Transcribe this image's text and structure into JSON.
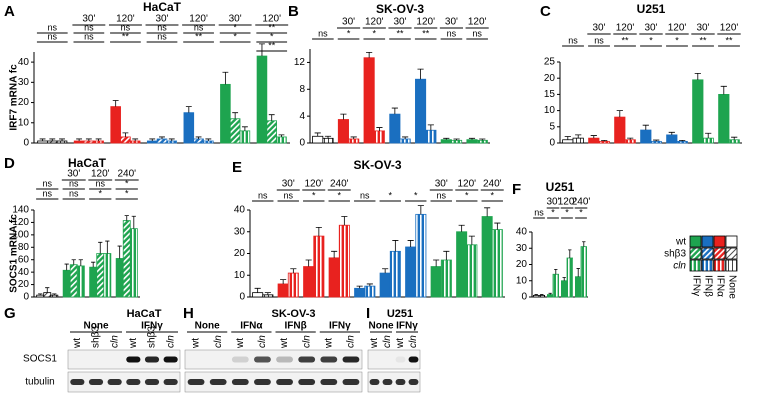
{
  "chart_data": [
    {
      "type": "bar",
      "letter": "A",
      "title": "HaCaT",
      "ylabel": "IRF7 mRNA fc",
      "ylim": [
        0,
        45
      ],
      "yticks": [
        0,
        10,
        20,
        30,
        40
      ],
      "categories": [
        null,
        "30'",
        "120'",
        "30'",
        "120'",
        "30'",
        "120'"
      ],
      "colors": [
        "#ffffff",
        "#e8221f",
        "#e8221f",
        "#1a6fc0",
        "#1a6fc0",
        "#1ea44f",
        "#1ea44f"
      ],
      "series": [
        {
          "pattern": "solid",
          "values": [
            1,
            1,
            18,
            1,
            15,
            29,
            43
          ],
          "errors": [
            1,
            1,
            3,
            1,
            3,
            6,
            6
          ]
        },
        {
          "pattern": "hatch",
          "values": [
            1,
            1,
            3,
            2,
            2,
            12,
            11
          ],
          "errors": [
            1,
            1,
            2,
            1,
            1,
            3,
            3
          ]
        },
        {
          "pattern": "stripe",
          "values": [
            1,
            1,
            1,
            1,
            1,
            6,
            3
          ],
          "errors": [
            1,
            1,
            1,
            1,
            1,
            2,
            1
          ]
        }
      ],
      "significance": [
        [
          "ns",
          "ns"
        ],
        [
          "ns",
          "ns"
        ],
        [
          "ns",
          "**"
        ],
        [
          "ns",
          "ns"
        ],
        [
          "ns",
          "**"
        ],
        [
          "*",
          "*"
        ],
        [
          "**",
          "*",
          "**"
        ]
      ]
    },
    {
      "type": "bar",
      "letter": "B",
      "title": "SK-OV-3",
      "ylim": [
        0,
        14
      ],
      "yticks": [
        0,
        4,
        8,
        12
      ],
      "categories": [
        null,
        "30'",
        "120'",
        "30'",
        "120'",
        "30'",
        "120'"
      ],
      "colors": [
        "#ffffff",
        "#e8221f",
        "#e8221f",
        "#1a6fc0",
        "#1a6fc0",
        "#1ea44f",
        "#1ea44f"
      ],
      "series": [
        {
          "pattern": "solid",
          "values": [
            1,
            3.5,
            12.7,
            4.3,
            9.5,
            0.5,
            0.5
          ],
          "errors": [
            0.5,
            0.8,
            0.8,
            0.9,
            1.5,
            0.2,
            0.2
          ]
        },
        {
          "pattern": "stripe",
          "values": [
            0.7,
            0.6,
            1.8,
            0.6,
            1.9,
            0.4,
            0.4
          ],
          "errors": [
            0.3,
            0.3,
            0.5,
            0.3,
            0.8,
            0.2,
            0.2
          ]
        }
      ],
      "significance": [
        [
          "ns"
        ],
        [
          "*"
        ],
        [
          "*"
        ],
        [
          "**"
        ],
        [
          "**"
        ],
        [
          "ns"
        ],
        [
          "ns"
        ]
      ]
    },
    {
      "type": "bar",
      "letter": "C",
      "title": "U251",
      "ylim": [
        0,
        25
      ],
      "yticks": [
        0,
        5,
        10,
        15,
        20,
        25
      ],
      "categories": [
        null,
        "30'",
        "120'",
        "30'",
        "120'",
        "30'",
        "120'"
      ],
      "colors": [
        "#ffffff",
        "#e8221f",
        "#e8221f",
        "#1a6fc0",
        "#1a6fc0",
        "#1ea44f",
        "#1ea44f"
      ],
      "series": [
        {
          "pattern": "solid",
          "values": [
            1,
            1.5,
            8,
            4,
            2.5,
            19.5,
            15
          ],
          "errors": [
            1,
            0.8,
            2,
            1.5,
            0.8,
            2,
            2.5
          ]
        },
        {
          "pattern": "stripe",
          "values": [
            1.5,
            0.5,
            1,
            0.5,
            0.5,
            1.5,
            1
          ],
          "errors": [
            1,
            0.3,
            0.5,
            0.4,
            0.3,
            1.5,
            0.8
          ]
        }
      ],
      "significance": [
        [
          "ns"
        ],
        [
          "ns"
        ],
        [
          "**"
        ],
        [
          "*"
        ],
        [
          "*"
        ],
        [
          "**"
        ],
        [
          "**"
        ]
      ]
    },
    {
      "type": "bar",
      "letter": "D",
      "title": "HaCaT",
      "ylabel": "SOCS1 mRNA fc",
      "ylim": [
        0,
        140
      ],
      "yticks": [
        0,
        20,
        40,
        60,
        80,
        100,
        120,
        140
      ],
      "categories": [
        null,
        "30'",
        "120'",
        "240'"
      ],
      "colors": [
        "#ffffff",
        "#1ea44f",
        "#1ea44f",
        "#1ea44f"
      ],
      "series": [
        {
          "pattern": "solid",
          "values": [
            3,
            43,
            48,
            62
          ],
          "errors": [
            2,
            10,
            8,
            20
          ]
        },
        {
          "pattern": "hatch",
          "values": [
            7,
            52,
            70,
            123
          ],
          "errors": [
            8,
            8,
            18,
            8
          ]
        },
        {
          "pattern": "stripe",
          "values": [
            3,
            50,
            70,
            110
          ],
          "errors": [
            2,
            10,
            20,
            20
          ]
        }
      ],
      "significance": [
        [
          "ns",
          "ns"
        ],
        [
          "ns",
          "ns"
        ],
        [
          "ns",
          "*"
        ],
        [
          "*",
          "*"
        ]
      ]
    },
    {
      "type": "bar",
      "letter": "E",
      "title": "SK-OV-3",
      "ylim": [
        0,
        40
      ],
      "yticks": [
        0,
        10,
        20,
        30,
        40
      ],
      "categories": [
        null,
        "30'",
        "120'",
        "240'",
        null,
        null,
        null,
        "30'",
        "120'",
        "240'"
      ],
      "colors": [
        "#ffffff",
        "#e8221f",
        "#e8221f",
        "#e8221f",
        "#1a6fc0",
        "#1a6fc0",
        "#1a6fc0",
        "#1ea44f",
        "#1ea44f",
        "#1ea44f"
      ],
      "series": [
        {
          "pattern": "solid",
          "values": [
            2,
            6,
            14,
            18,
            4,
            11,
            23,
            14,
            30,
            37
          ],
          "errors": [
            2,
            2,
            3,
            3,
            1,
            2,
            3,
            3,
            3,
            4
          ]
        },
        {
          "pattern": "stripe",
          "values": [
            1,
            11,
            28,
            33,
            5,
            21,
            38,
            17,
            24,
            31
          ],
          "errors": [
            1,
            2,
            4,
            4,
            1,
            5,
            4,
            4,
            4,
            3
          ]
        }
      ],
      "significance": [
        [
          "ns"
        ],
        [
          "ns"
        ],
        [
          "*"
        ],
        [
          "*"
        ],
        [
          "ns"
        ],
        [
          "*"
        ],
        [
          "*"
        ],
        [
          "ns"
        ],
        [
          "*"
        ],
        [
          "*"
        ]
      ]
    },
    {
      "type": "bar",
      "letter": "F",
      "title": "U251",
      "ylim": [
        0,
        40
      ],
      "yticks": [
        0,
        10,
        20,
        30,
        40
      ],
      "categories": [
        null,
        "30'",
        "120'",
        "240'"
      ],
      "colors": [
        "#ffffff",
        "#1ea44f",
        "#1ea44f",
        "#1ea44f"
      ],
      "series": [
        {
          "pattern": "solid",
          "values": [
            1,
            1.5,
            10,
            12.5
          ],
          "errors": [
            0.5,
            0.8,
            2,
            5
          ]
        },
        {
          "pattern": "stripe",
          "values": [
            1,
            14,
            24,
            31
          ],
          "errors": [
            0.5,
            3,
            5,
            3
          ]
        }
      ],
      "significance": [
        [
          "ns"
        ],
        [
          "*"
        ],
        [
          "*"
        ],
        [
          "*"
        ]
      ]
    }
  ],
  "legend": {
    "rows": [
      "wt",
      "shβ3",
      "cln"
    ],
    "patterns": [
      "solid",
      "hatch",
      "stripe"
    ],
    "columns": [
      "IFNγ",
      "IFNβ",
      "IFNα",
      "None"
    ],
    "colors": [
      "#1ea44f",
      "#1a6fc0",
      "#e8221f",
      "#ffffff"
    ]
  },
  "blot_rows": [
    "SOCS1",
    "tubulin"
  ],
  "blots": [
    {
      "letter": "G",
      "title": "HaCaT",
      "groups": [
        "None",
        "IFNγ"
      ],
      "lanes": [
        "wt",
        "shβ3",
        "cln",
        "wt",
        "shβ3",
        "cln"
      ]
    },
    {
      "letter": "H",
      "title": "SK-OV-3",
      "groups": [
        "None",
        "IFNα",
        "IFNβ",
        "IFNγ"
      ],
      "lanes": [
        "wt",
        "cln",
        "wt",
        "cln",
        "wt",
        "cln",
        "wt",
        "cln"
      ]
    },
    {
      "letter": "I",
      "title": "U251",
      "groups": [
        "None",
        "IFNγ"
      ],
      "lanes": [
        "wt",
        "cln",
        "wt",
        "cln"
      ]
    }
  ]
}
